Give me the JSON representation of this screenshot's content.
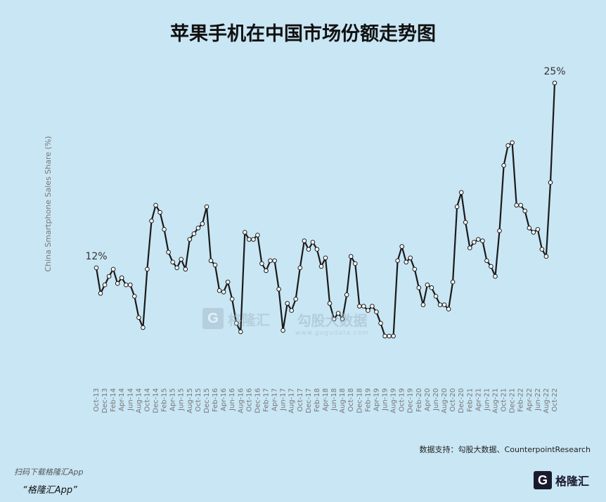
{
  "title": "苹果手机在中国市场份额走势图",
  "source_text": "数据支持：勾股大数据、CounterpointResearch",
  "footer_note": "扫码下载格隆汇App",
  "footer_app": "“格隆汇App”",
  "brand": {
    "mark": "G",
    "name": "格隆汇"
  },
  "watermark": {
    "mark": "G",
    "name": "格隆汇",
    "site": "勾股大数据",
    "url": "www.gogudata.com"
  },
  "colors": {
    "background": "#c9e6f4",
    "line": "#1a1a1a",
    "marker_fill": "#ffffff"
  },
  "chart_data": {
    "type": "line",
    "ylabel": "China Smartphone Sales Share (%)",
    "xlabel": "",
    "grid": false,
    "y_range": [
      6,
      25
    ],
    "x_tick_labels": [
      "Oct-13",
      "Dec-13",
      "Feb-14",
      "Apr-14",
      "Jun-14",
      "Aug-14",
      "Oct-14",
      "Dec-14",
      "Feb-15",
      "Apr-15",
      "Jun-15",
      "Aug-15",
      "Oct-15",
      "Dec-15",
      "Feb-16",
      "Apr-16",
      "Jun-16",
      "Aug-16",
      "Oct-16",
      "Dec-16",
      "Feb-17",
      "Apr-17",
      "Jun-17",
      "Aug-17",
      "Oct-17",
      "Dec-17",
      "Feb-18",
      "Apr-18",
      "Jun-18",
      "Aug-18",
      "Oct-18",
      "Dec-18",
      "Feb-19",
      "Apr-19",
      "Jun-19",
      "Aug-19",
      "Oct-19",
      "Dec-19",
      "Feb-20",
      "Apr-20",
      "Jun-20",
      "Aug-20",
      "Oct-20",
      "Dec-20",
      "Feb-21",
      "Apr-21",
      "Jun-21",
      "Aug-21",
      "Oct-21",
      "Dec-21",
      "Feb-22",
      "Apr-22",
      "Jun-22",
      "Aug-22",
      "Oct-22"
    ],
    "series": [
      {
        "values": [
          12.0,
          10.2,
          10.8,
          11.4,
          11.9,
          10.9,
          11.3,
          10.8,
          10.8,
          10.0,
          8.5,
          7.8,
          11.9,
          15.3,
          16.4,
          15.9,
          14.7,
          13.1,
          12.4,
          12.0,
          12.6,
          11.9,
          14.0,
          14.4,
          14.8,
          15.1,
          16.3,
          12.5,
          12.2,
          10.4,
          10.3,
          11.0,
          9.8,
          8.1,
          7.5,
          14.5,
          14.0,
          14.0,
          14.3,
          12.3,
          11.8,
          12.5,
          12.5,
          10.5,
          7.6,
          9.5,
          9.0,
          9.8,
          12.0,
          13.9,
          13.3,
          13.8,
          13.3,
          12.1,
          12.7,
          9.5,
          8.4,
          8.8,
          8.4,
          10.1,
          12.8,
          12.3,
          9.3,
          9.3,
          9.0,
          9.3,
          8.9,
          8.1,
          7.2,
          7.2,
          7.2,
          12.5,
          13.5,
          12.4,
          12.7,
          11.9,
          10.6,
          9.4,
          10.8,
          10.6,
          10.0,
          9.4,
          9.4,
          9.1,
          11.0,
          16.3,
          17.3,
          15.2,
          13.4,
          13.8,
          14.0,
          13.9,
          12.5,
          12.1,
          11.4,
          14.6,
          19.2,
          20.6,
          20.8,
          16.4,
          16.4,
          16.0,
          14.8,
          14.5,
          14.7,
          13.3,
          12.8,
          18.0,
          25.0
        ]
      }
    ],
    "annotations": [
      {
        "label": "12%",
        "at": "start"
      },
      {
        "label": "25%",
        "at": "end"
      }
    ]
  }
}
